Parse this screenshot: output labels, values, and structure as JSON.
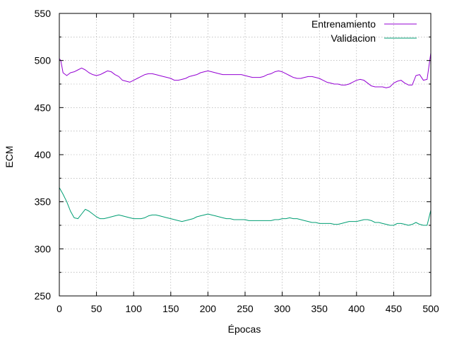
{
  "chart_data": {
    "type": "line",
    "title": "",
    "xlabel": "Épocas",
    "ylabel": "ECM",
    "xlim": [
      0,
      500
    ],
    "ylim": [
      250,
      550
    ],
    "xticks": [
      0,
      50,
      100,
      150,
      200,
      250,
      300,
      350,
      400,
      450,
      500
    ],
    "yticks": [
      250,
      300,
      350,
      400,
      450,
      500,
      550
    ],
    "grid": true,
    "legend_position": "top-right",
    "series": [
      {
        "name": "Entrenamiento",
        "color": "#9400d3",
        "x": [
          0,
          2,
          5,
          10,
          15,
          20,
          25,
          30,
          35,
          40,
          45,
          50,
          55,
          60,
          65,
          70,
          75,
          80,
          85,
          90,
          95,
          100,
          105,
          110,
          115,
          120,
          125,
          130,
          135,
          140,
          145,
          150,
          155,
          160,
          165,
          170,
          175,
          180,
          185,
          190,
          195,
          200,
          205,
          210,
          215,
          220,
          225,
          230,
          235,
          240,
          245,
          250,
          255,
          260,
          265,
          270,
          275,
          280,
          285,
          290,
          295,
          300,
          305,
          310,
          315,
          320,
          325,
          330,
          335,
          340,
          345,
          350,
          355,
          360,
          365,
          370,
          375,
          380,
          385,
          390,
          395,
          400,
          405,
          410,
          415,
          420,
          425,
          430,
          435,
          440,
          445,
          450,
          455,
          460,
          465,
          470,
          475,
          480,
          485,
          490,
          495,
          500
        ],
        "y": [
          502,
          500,
          487,
          484,
          487,
          488,
          490,
          492,
          490,
          487,
          485,
          484,
          485,
          487,
          489,
          488,
          485,
          483,
          479,
          478,
          477,
          479,
          481,
          483,
          485,
          486,
          486,
          485,
          484,
          483,
          482,
          481,
          479,
          479,
          480,
          481,
          483,
          484,
          485,
          487,
          488,
          489,
          488,
          487,
          486,
          485,
          485,
          485,
          485,
          485,
          485,
          484,
          483,
          482,
          482,
          482,
          483,
          485,
          486,
          488,
          489,
          488,
          486,
          484,
          482,
          481,
          481,
          482,
          483,
          483,
          482,
          481,
          479,
          477,
          476,
          475,
          475,
          474,
          474,
          475,
          477,
          479,
          480,
          479,
          476,
          473,
          472,
          472,
          472,
          471,
          472,
          476,
          478,
          479,
          476,
          474,
          474,
          484,
          485,
          479,
          480,
          508
        ]
      },
      {
        "name": "Validacion",
        "color": "#009e73",
        "x": [
          0,
          5,
          10,
          15,
          20,
          25,
          30,
          35,
          40,
          45,
          50,
          55,
          60,
          65,
          70,
          75,
          80,
          85,
          90,
          95,
          100,
          105,
          110,
          115,
          120,
          125,
          130,
          135,
          140,
          145,
          150,
          155,
          160,
          165,
          170,
          175,
          180,
          185,
          190,
          195,
          200,
          205,
          210,
          215,
          220,
          225,
          230,
          235,
          240,
          245,
          250,
          255,
          260,
          265,
          270,
          275,
          280,
          285,
          290,
          295,
          300,
          305,
          310,
          315,
          320,
          325,
          330,
          335,
          340,
          345,
          350,
          355,
          360,
          365,
          370,
          375,
          380,
          385,
          390,
          395,
          400,
          405,
          410,
          415,
          420,
          425,
          430,
          435,
          440,
          445,
          450,
          455,
          460,
          465,
          470,
          475,
          480,
          485,
          490,
          495,
          500
        ],
        "y": [
          365,
          358,
          350,
          340,
          333,
          332,
          337,
          342,
          340,
          337,
          334,
          332,
          332,
          333,
          334,
          335,
          336,
          335,
          334,
          333,
          332,
          332,
          332,
          333,
          335,
          336,
          336,
          335,
          334,
          333,
          332,
          331,
          330,
          329,
          330,
          331,
          332,
          334,
          335,
          336,
          337,
          336,
          335,
          334,
          333,
          332,
          332,
          331,
          331,
          331,
          331,
          330,
          330,
          330,
          330,
          330,
          330,
          330,
          331,
          331,
          332,
          332,
          333,
          332,
          332,
          331,
          330,
          329,
          328,
          328,
          327,
          327,
          327,
          327,
          326,
          326,
          327,
          328,
          329,
          329,
          329,
          330,
          331,
          331,
          330,
          328,
          328,
          327,
          326,
          325,
          325,
          327,
          327,
          326,
          325,
          326,
          328,
          326,
          325,
          325,
          341
        ]
      }
    ]
  }
}
